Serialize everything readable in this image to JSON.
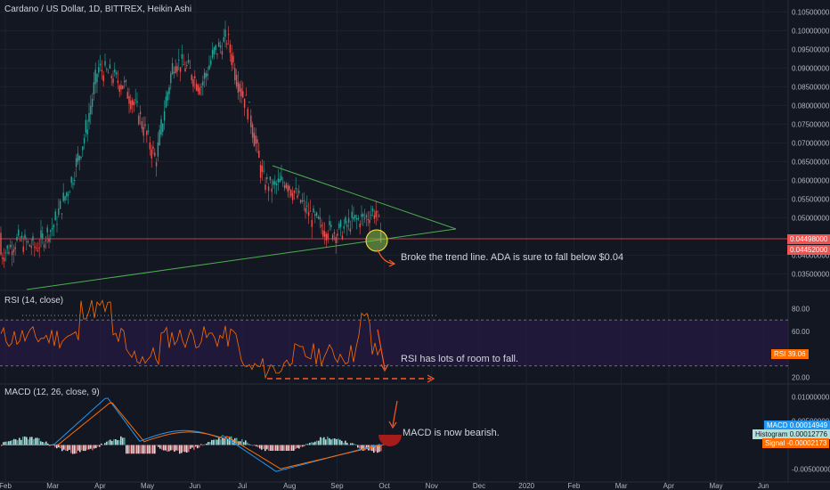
{
  "header": {
    "main_title": "Cardano / US Dollar, 1D, BITTREX, Heikin Ashi",
    "rsi_title": "RSI (14, close)",
    "macd_title": "MACD (12, 26, close, 9)"
  },
  "colors": {
    "background": "#131722",
    "up": "#26a69a",
    "down": "#ef5350",
    "trend": "#4caf50",
    "annotation": "#ff5722",
    "rsi_line": "#ff6d00",
    "macd_line": "#2196f3",
    "signal_line": "#ff6d00",
    "rsi_band": "#2a1a4a"
  },
  "price_axis": {
    "ticks": [
      "0.10500000",
      "0.10000000",
      "0.09500000",
      "0.09000000",
      "0.08500000",
      "0.08000000",
      "0.07500000",
      "0.07000000",
      "0.06500000",
      "0.06000000",
      "0.05500000",
      "0.05000000",
      "0.04000000",
      "0.03500000"
    ],
    "label_high": "0.04498000",
    "label_low": "0.04452000"
  },
  "rsi_axis": {
    "ticks": [
      "80.00",
      "60.00",
      "20.00"
    ],
    "label": "RSI",
    "value": "39.06"
  },
  "macd_axis": {
    "ticks": [
      "0.01000000",
      "0.00500000",
      "-0.00500000"
    ],
    "macd_label": "MACD",
    "macd_value": "0.00014949",
    "hist_label": "Histogram",
    "hist_value": "0.00012776",
    "signal_label": "Signal",
    "signal_value": "-0.00002173"
  },
  "x_axis": {
    "labels": [
      "Feb",
      "Mar",
      "Apr",
      "May",
      "Jun",
      "Jul",
      "Aug",
      "Sep",
      "Oct",
      "Nov",
      "Dec",
      "2020",
      "Feb",
      "Mar",
      "Apr",
      "May",
      "Jun"
    ]
  },
  "annotations": {
    "trend": "Broke the trend line. ADA is sure to fall below $0.04",
    "rsi": "RSI has lots of room to fall.",
    "macd": "MACD is now bearish."
  },
  "chart_data": {
    "type": "candlestick",
    "title": "Cardano / US Dollar, 1D, BITTREX, Heikin Ashi",
    "x_range": [
      "2019-02",
      "2020-06"
    ],
    "price_ylim": [
      0.032,
      0.107
    ],
    "monthly_closes": [
      {
        "month": "Feb",
        "close": 0.04
      },
      {
        "month": "Mar",
        "close": 0.046
      },
      {
        "month": "Apr",
        "close": 0.08
      },
      {
        "month": "May",
        "close": 0.07
      },
      {
        "month": "Jun",
        "close": 0.095
      },
      {
        "month": "Jul",
        "close": 0.075
      },
      {
        "month": "Aug",
        "close": 0.052
      },
      {
        "month": "Sep",
        "close": 0.046
      },
      {
        "month": "Oct",
        "close": 0.0445
      }
    ],
    "rsi": {
      "period": 14,
      "levels": [
        70,
        30
      ],
      "last": 39.06,
      "ylim": [
        15,
        95
      ]
    },
    "macd": {
      "fast": 12,
      "slow": 26,
      "signal": 9,
      "macd": 0.00014949,
      "histogram": 0.00012776,
      "signal_value": -2.173e-05,
      "ylim": [
        -0.0075,
        0.0125
      ]
    }
  }
}
